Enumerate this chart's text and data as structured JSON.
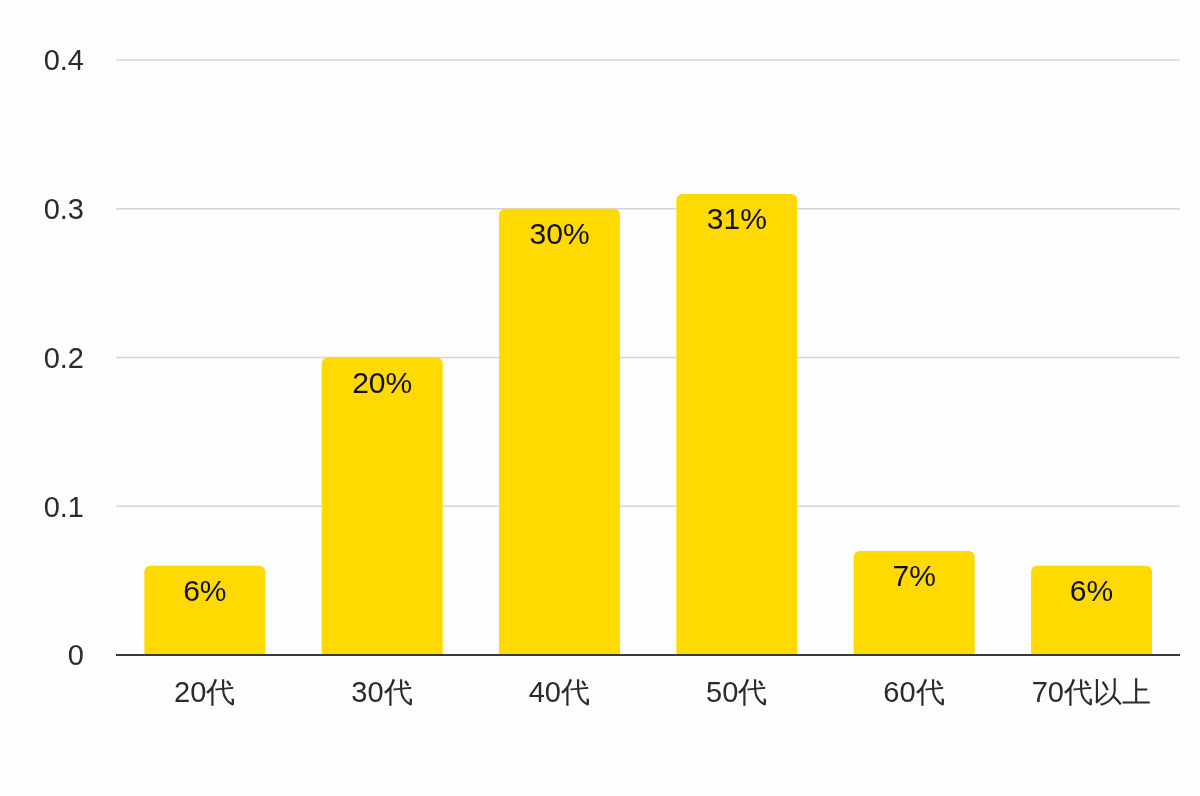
{
  "chart_data": {
    "type": "bar",
    "categories": [
      "20代",
      "30代",
      "40代",
      "50代",
      "60代",
      "70代以上"
    ],
    "values": [
      0.06,
      0.2,
      0.3,
      0.31,
      0.07,
      0.06
    ],
    "color": "#ffda00",
    "value_labels": [
      "6%",
      "20%",
      "30%",
      "31%",
      "7%",
      "6%"
    ],
    "ylim": [
      0,
      0.4
    ],
    "yticks": [
      0,
      0.1,
      0.2,
      0.3,
      0.4
    ],
    "grid": "y"
  }
}
